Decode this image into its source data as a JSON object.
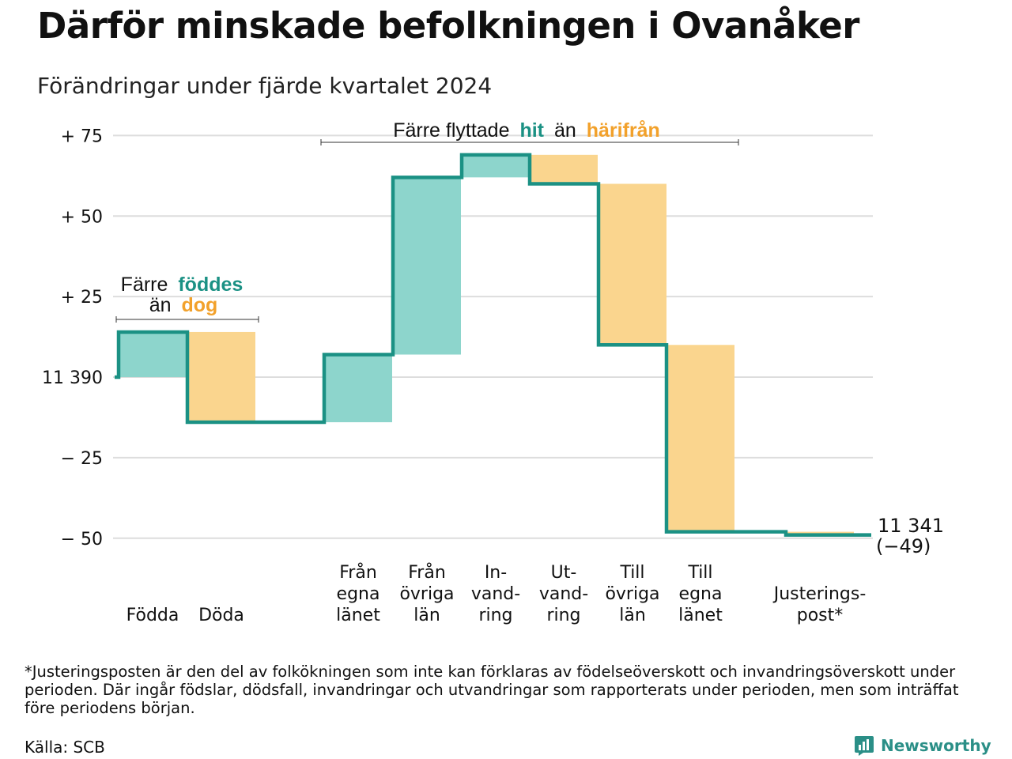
{
  "title": "Därför minskade befolkningen i Ovanåker",
  "subtitle": "Förändringar under fjärde kvartalet 2024",
  "colors": {
    "increase": "#8dd5cc",
    "decrease": "#fad58e",
    "line": "#1b9184",
    "accent_teal": "#1b9184",
    "accent_orange": "#f2a12b",
    "grid": "#dddddd"
  },
  "annotations": {
    "births_deaths": {
      "line1_prefix": "Färre",
      "line1_highlight": "föddes",
      "line2_prefix": "än",
      "line2_highlight": "dog"
    },
    "migration": {
      "prefix": "Färre flyttade",
      "highlight1": "hit",
      "middle": "än",
      "highlight2": "härifrån"
    }
  },
  "end_label": {
    "value": "11 341",
    "change": "(−49)"
  },
  "footnote": "*Justeringsposten är den del av folkökningen som inte kan förklaras av födelseöverskott och invandringsöverskott under perioden. Där ingår födslar, dödsfall, invandringar och utvandringar som rapporterats under perioden, men som inträffat före periodens början.",
  "source": "Källa: SCB",
  "brand": "Newsworthy",
  "chart_data": {
    "type": "waterfall",
    "start_value": 11390,
    "end_value": 11341,
    "net_change": -49,
    "y_tick_labels": [
      "+ 75",
      "+ 50",
      "+ 25",
      "11 390",
      "− 25",
      "− 50"
    ],
    "y_ticks": [
      75,
      50,
      25,
      0,
      -25,
      -50
    ],
    "ylim": [
      -55,
      78
    ],
    "grid": true,
    "steps": [
      {
        "label_lines": [
          "Födda"
        ],
        "value": 14
      },
      {
        "label_lines": [
          "Döda"
        ],
        "value": -28
      },
      {
        "label_lines": [
          "Från",
          "egna",
          "länet"
        ],
        "value": 21
      },
      {
        "label_lines": [
          "Från",
          "övriga",
          "län"
        ],
        "value": 55
      },
      {
        "label_lines": [
          "In-",
          "vand-",
          "ring"
        ],
        "value": 7
      },
      {
        "label_lines": [
          "Ut-",
          "vand-",
          "ring"
        ],
        "value": -9
      },
      {
        "label_lines": [
          "Till",
          "övriga",
          "län"
        ],
        "value": -50
      },
      {
        "label_lines": [
          "Till",
          "egna",
          "länet"
        ],
        "value": -58
      },
      {
        "label_lines": [
          "Justerings-",
          "post*"
        ],
        "value": -1
      }
    ]
  }
}
